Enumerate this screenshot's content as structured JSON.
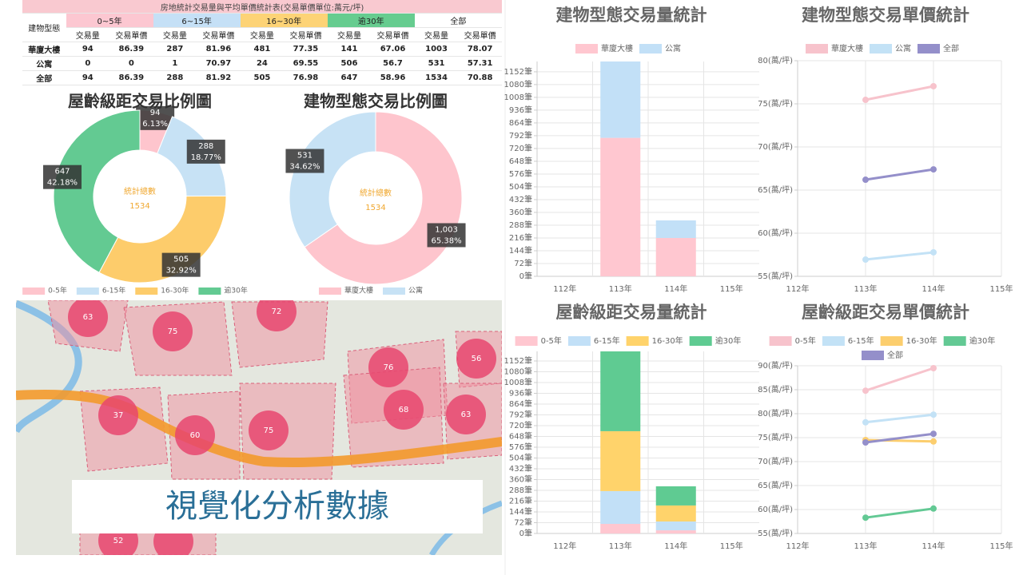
{
  "table": {
    "title": "房地統計交易量與平均單價統計表(交易單價單位:萬元/坪)",
    "header": [
      "建物型態",
      "0~5年",
      "6~15年",
      "16~30年",
      "逾30年",
      "全部"
    ],
    "header_colors": [
      "#ffffff",
      "#fcc7d1",
      "#c5e0f6",
      "#fdd376",
      "#66cc8f",
      "#ffffff"
    ],
    "subheader": [
      "交易量",
      "交易單價",
      "交易量",
      "交易單價",
      "交易量",
      "交易單價",
      "交易量",
      "交易單價",
      "交易量",
      "交易單價"
    ],
    "rows": [
      [
        "華廈大樓",
        94,
        86.39,
        287,
        81.96,
        481,
        77.35,
        141,
        67.06,
        1003,
        78.07
      ],
      [
        "公寓",
        0,
        0,
        1,
        70.97,
        24,
        69.55,
        506,
        56.7,
        531,
        57.31
      ],
      [
        "全部",
        94,
        86.39,
        288,
        81.92,
        505,
        76.98,
        647,
        58.96,
        1534,
        70.88
      ]
    ]
  },
  "chart_data": [
    {
      "type": "donut",
      "title": "屋齡級距交易比例圖",
      "categories": [
        "0-5年",
        "6-15年",
        "16-30年",
        "逾30年"
      ],
      "values": [
        94,
        288,
        505,
        647
      ],
      "percent_labels": [
        "6.13%",
        "18.77%",
        "32.92%",
        "42.18%"
      ],
      "colors": [
        "#fec5cd",
        "#c7e2f5",
        "#fdcc6b",
        "#63ca92"
      ],
      "center_label": "統計總數",
      "total": 1534,
      "legend": "bottom"
    },
    {
      "type": "donut",
      "title": "建物型態交易比例圖",
      "categories": [
        "華廈大樓",
        "公寓"
      ],
      "values": [
        1003,
        531
      ],
      "value_labels": [
        "1,003",
        "531"
      ],
      "percent_labels": [
        "65.38%",
        "34.62%"
      ],
      "colors": [
        "#fec5cd",
        "#c7e2f5"
      ],
      "center_label": "統計總數",
      "total": 1534,
      "legend": "bottom"
    },
    {
      "type": "stacked_bar",
      "title": "建物型態交易量統計",
      "categories": [
        "112年",
        "113年",
        "114年",
        "115年"
      ],
      "series": [
        {
          "name": "華廈大樓",
          "color": "#ffc7d0",
          "values": [
            null,
            780,
            216,
            null
          ]
        },
        {
          "name": "公寓",
          "color": "#c2e0f7",
          "values": [
            null,
            430,
            99,
            null
          ]
        }
      ],
      "ylim": [
        0,
        1210
      ],
      "yticks": [
        {
          "value": 0,
          "label": "0筆"
        },
        {
          "value": 72,
          "label": "72筆"
        },
        {
          "value": 144,
          "label": "144筆"
        },
        {
          "value": 216,
          "label": "216筆"
        },
        {
          "value": 288,
          "label": "288筆"
        },
        {
          "value": 360,
          "label": "360筆"
        },
        {
          "value": 432,
          "label": "432筆"
        },
        {
          "value": 504,
          "label": "504筆"
        },
        {
          "value": 576,
          "label": "576筆"
        },
        {
          "value": 648,
          "label": "648筆"
        },
        {
          "value": 720,
          "label": "720筆"
        },
        {
          "value": 792,
          "label": "792筆"
        },
        {
          "value": 864,
          "label": "864筆"
        },
        {
          "value": 936,
          "label": "936筆"
        },
        {
          "value": 1008,
          "label": "1008筆"
        },
        {
          "value": 1080,
          "label": "1080筆"
        },
        {
          "value": 1152,
          "label": "1152筆"
        }
      ],
      "grid": true,
      "legend": "top"
    },
    {
      "type": "line",
      "title": "建物型態交易單價統計",
      "categories": [
        "112年",
        "113年",
        "114年",
        "115年"
      ],
      "series": [
        {
          "name": "華廈大樓",
          "color": "#f7c3cc",
          "values": [
            null,
            75.46,
            77.04,
            null
          ]
        },
        {
          "name": "公寓",
          "color": "#c3e2f6",
          "values": [
            null,
            56.94,
            57.78,
            null
          ]
        },
        {
          "name": "全部",
          "color": "#948fca",
          "values": [
            null,
            66.2,
            67.4,
            null
          ]
        }
      ],
      "ylim": [
        55,
        80
      ],
      "yticks": [
        {
          "value": 55,
          "label": "55(萬/坪)"
        },
        {
          "value": 60,
          "label": "60(萬/坪)"
        },
        {
          "value": 65,
          "label": "65(萬/坪)"
        },
        {
          "value": 70,
          "label": "70(萬/坪)"
        },
        {
          "value": 75,
          "label": "75(萬/坪)"
        },
        {
          "value": 80,
          "label": "80(萬/坪)"
        }
      ],
      "grid": true,
      "legend": "top"
    },
    {
      "type": "stacked_bar",
      "title": "屋齡級距交易量統計",
      "categories": [
        "112年",
        "113年",
        "114年",
        "115年"
      ],
      "series": [
        {
          "name": "0-5年",
          "color": "#ffc7d0",
          "values": [
            null,
            64,
            21,
            null
          ]
        },
        {
          "name": "6-15年",
          "color": "#c2e0f7",
          "values": [
            null,
            219,
            59,
            null
          ]
        },
        {
          "name": "16-30年",
          "color": "#ffd36b",
          "values": [
            null,
            400,
            107,
            null
          ]
        },
        {
          "name": "逾30年",
          "color": "#5fcb92",
          "values": [
            null,
            533,
            128,
            null
          ]
        }
      ],
      "ylim": [
        0,
        1216
      ],
      "yticks": [
        {
          "value": 0,
          "label": "0筆"
        },
        {
          "value": 72,
          "label": "72筆"
        },
        {
          "value": 144,
          "label": "144筆"
        },
        {
          "value": 216,
          "label": "216筆"
        },
        {
          "value": 288,
          "label": "288筆"
        },
        {
          "value": 360,
          "label": "360筆"
        },
        {
          "value": 432,
          "label": "432筆"
        },
        {
          "value": 504,
          "label": "504筆"
        },
        {
          "value": 576,
          "label": "576筆"
        },
        {
          "value": 648,
          "label": "648筆"
        },
        {
          "value": 720,
          "label": "720筆"
        },
        {
          "value": 792,
          "label": "792筆"
        },
        {
          "value": 864,
          "label": "864筆"
        },
        {
          "value": 936,
          "label": "936筆"
        },
        {
          "value": 1008,
          "label": "1008筆"
        },
        {
          "value": 1080,
          "label": "1080筆"
        },
        {
          "value": 1152,
          "label": "1152筆"
        }
      ],
      "grid": true,
      "legend": "top"
    },
    {
      "type": "line",
      "title": "屋齡級距交易單價統計",
      "categories": [
        "112年",
        "113年",
        "114年",
        "115年"
      ],
      "series": [
        {
          "name": "0-5年",
          "color": "#f7c3cc",
          "values": [
            null,
            84.8,
            89.5,
            null
          ]
        },
        {
          "name": "6-15年",
          "color": "#c3e2f6",
          "values": [
            null,
            78.2,
            79.8,
            null
          ]
        },
        {
          "name": "16-30年",
          "color": "#fcce6e",
          "values": [
            null,
            74.5,
            74.2,
            null
          ]
        },
        {
          "name": "逾30年",
          "color": "#63c994",
          "values": [
            null,
            58.3,
            60.2,
            null
          ]
        },
        {
          "name": "全部",
          "color": "#948fca",
          "values": [
            null,
            74.0,
            75.8,
            null
          ]
        }
      ],
      "ylim": [
        55,
        90
      ],
      "yticks": [
        {
          "value": 55,
          "label": "55(萬/坪)"
        },
        {
          "value": 60,
          "label": "60(萬/坪)"
        },
        {
          "value": 65,
          "label": "65(萬/坪)"
        },
        {
          "value": 70,
          "label": "70(萬/坪)"
        },
        {
          "value": 75,
          "label": "75(萬/坪)"
        },
        {
          "value": 80,
          "label": "80(萬/坪)"
        },
        {
          "value": 85,
          "label": "85(萬/坪)"
        },
        {
          "value": 90,
          "label": "90(萬/坪)"
        }
      ],
      "grid": true,
      "legend": "top"
    }
  ],
  "map": {
    "clusters": [
      63,
      75,
      72,
      76,
      56,
      37,
      60,
      75,
      68,
      63,
      52
    ],
    "banner": "視覺化分析數據"
  }
}
